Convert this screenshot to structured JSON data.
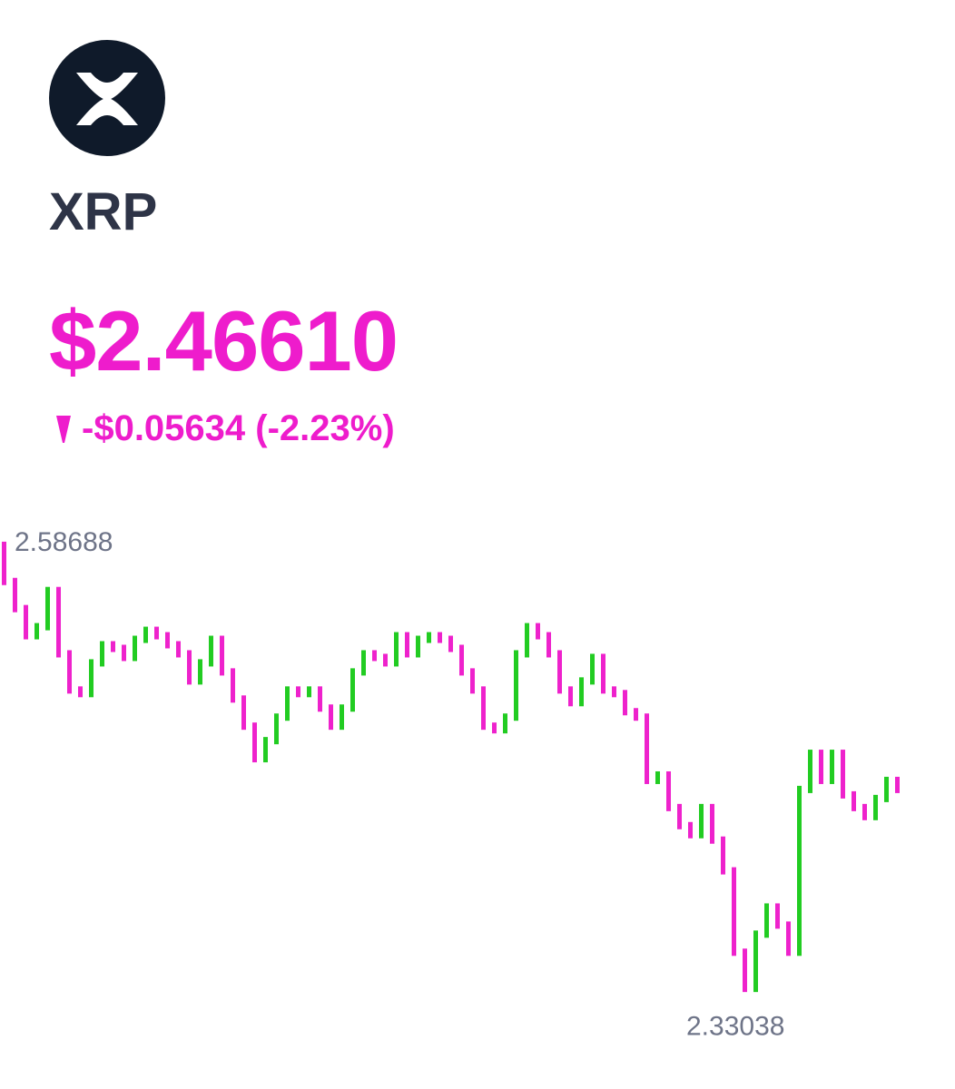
{
  "header": {
    "symbol": "XRP",
    "price": "$2.46610",
    "change": "-$0.05634 (-2.23%)"
  },
  "chart_data": {
    "type": "candlestick",
    "open": [
      2.585,
      2.565,
      2.55,
      2.535,
      2.54,
      2.56,
      2.525,
      2.505,
      2.503,
      2.52,
      2.53,
      2.528,
      2.523,
      2.533,
      2.538,
      2.535,
      2.53,
      2.525,
      2.51,
      2.52,
      2.533,
      2.515,
      2.5,
      2.485,
      2.467,
      2.477,
      2.49,
      2.505,
      2.503,
      2.505,
      2.495,
      2.485,
      2.495,
      2.515,
      2.525,
      2.523,
      2.52,
      2.535,
      2.525,
      2.533,
      2.535,
      2.533,
      2.528,
      2.515,
      2.505,
      2.485,
      2.483,
      2.49,
      2.525,
      2.54,
      2.535,
      2.525,
      2.505,
      2.498,
      2.51,
      2.523,
      2.505,
      2.503,
      2.493,
      2.49,
      2.455,
      2.458,
      2.44,
      2.43,
      2.425,
      2.44,
      2.422,
      2.405,
      2.36,
      2.34,
      2.37,
      2.385,
      2.375,
      2.36,
      2.45,
      2.47,
      2.455,
      2.47,
      2.447,
      2.44,
      2.435,
      2.445,
      2.455
    ],
    "close": [
      2.565,
      2.55,
      2.535,
      2.54,
      2.56,
      2.525,
      2.505,
      2.503,
      2.52,
      2.53,
      2.528,
      2.523,
      2.533,
      2.538,
      2.535,
      2.53,
      2.525,
      2.51,
      2.52,
      2.533,
      2.515,
      2.5,
      2.485,
      2.467,
      2.477,
      2.49,
      2.505,
      2.503,
      2.505,
      2.495,
      2.485,
      2.495,
      2.515,
      2.525,
      2.523,
      2.52,
      2.535,
      2.525,
      2.533,
      2.535,
      2.533,
      2.528,
      2.515,
      2.505,
      2.485,
      2.483,
      2.49,
      2.525,
      2.54,
      2.535,
      2.525,
      2.505,
      2.498,
      2.51,
      2.523,
      2.505,
      2.503,
      2.493,
      2.49,
      2.455,
      2.458,
      2.44,
      2.43,
      2.425,
      2.44,
      2.422,
      2.405,
      2.36,
      2.34,
      2.37,
      2.385,
      2.375,
      2.36,
      2.45,
      2.47,
      2.455,
      2.47,
      2.447,
      2.44,
      2.435,
      2.445,
      2.455,
      2.45
    ],
    "ylim": [
      2.32,
      2.6
    ],
    "high_label": 2.58688,
    "low_label": 2.33038,
    "colors": {
      "up": "#22cc22",
      "down": "#ee22cc"
    }
  }
}
